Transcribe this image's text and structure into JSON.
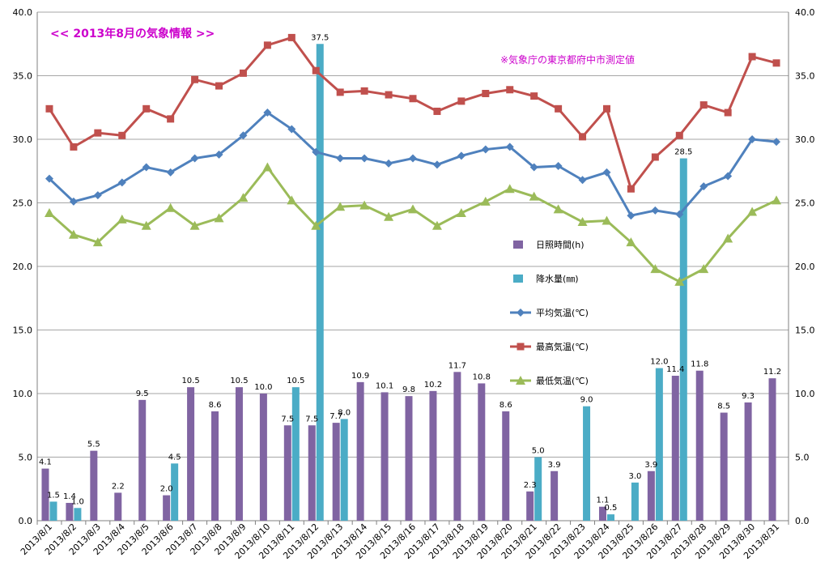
{
  "chart_data": {
    "type": "bar",
    "title": "<<  2013年8月の気象情報  >>",
    "note": "※気象庁の東京都府中市測定値",
    "ylim": [
      0,
      40
    ],
    "yticks": [
      "0.0",
      "5.0",
      "10.0",
      "15.0",
      "20.0",
      "25.0",
      "30.0",
      "35.0",
      "40.0"
    ],
    "grid": true,
    "legend_position": "center-right",
    "categories": [
      "2013/8/1",
      "2013/8/2",
      "2013/8/3",
      "2013/8/4",
      "2013/8/5",
      "2013/8/6",
      "2013/8/7",
      "2013/8/8",
      "2013/8/9",
      "2013/8/10",
      "2013/8/11",
      "2013/8/12",
      "2013/8/13",
      "2013/8/14",
      "2013/8/15",
      "2013/8/16",
      "2013/8/17",
      "2013/8/18",
      "2013/8/19",
      "2013/8/20",
      "2013/8/21",
      "2013/8/22",
      "2013/8/23",
      "2013/8/24",
      "2013/8/25",
      "2013/8/26",
      "2013/8/27",
      "2013/8/28",
      "2013/8/29",
      "2013/8/30",
      "2013/8/31"
    ],
    "series": [
      {
        "name": "日照時間(h)",
        "kind": "bar",
        "color": "#8064a2",
        "values": [
          4.1,
          1.4,
          5.5,
          2.2,
          9.5,
          2.0,
          10.5,
          8.6,
          10.5,
          10.0,
          7.5,
          7.5,
          7.7,
          10.9,
          10.1,
          9.8,
          10.2,
          11.7,
          10.8,
          8.6,
          2.3,
          3.9,
          0,
          1.1,
          0,
          3.9,
          11.4,
          11.8,
          8.5,
          9.3,
          11.2
        ],
        "labels": [
          "4.1",
          "1.4",
          "5.5",
          "2.2",
          "9.5",
          "2.0",
          "10.5",
          "8.6",
          "10.5",
          "10.0",
          "7.5",
          "7.5",
          "7.7",
          "10.9",
          "10.1",
          "9.8",
          "10.2",
          "11.7",
          "10.8",
          "8.6",
          "2.3",
          "3.9",
          "",
          "1.1",
          "",
          "3.9",
          "11.4",
          "11.8",
          "8.5",
          "9.3",
          "11.2"
        ]
      },
      {
        "name": "降水量(㎜)",
        "kind": "bar",
        "color": "#4bacc6",
        "values": [
          1.5,
          1.0,
          0,
          0,
          0,
          4.5,
          0,
          0,
          0,
          0,
          10.5,
          37.5,
          8.0,
          0,
          0,
          0,
          0,
          0,
          0,
          0,
          5.0,
          0,
          9.0,
          0.5,
          3.0,
          12.0,
          28.5,
          0,
          0,
          0,
          0
        ],
        "labels": [
          "1.5",
          "1.0",
          "",
          "",
          "",
          "4.5",
          "",
          "",
          "",
          "",
          "10.5",
          "37.5",
          "8.0",
          "",
          "",
          "",
          "",
          "",
          "",
          "",
          "5.0",
          "",
          "9.0",
          "0.5",
          "3.0",
          "12.0",
          "28.5",
          "",
          "",
          "",
          ""
        ]
      },
      {
        "name": "平均気温(℃)",
        "kind": "line",
        "marker": "diamond",
        "color": "#4f81bd",
        "values": [
          26.9,
          25.1,
          25.6,
          26.6,
          27.8,
          27.4,
          28.5,
          28.8,
          30.3,
          32.1,
          30.8,
          29.0,
          28.5,
          28.5,
          28.1,
          28.5,
          28.0,
          28.7,
          29.2,
          29.4,
          27.8,
          27.9,
          26.8,
          27.4,
          24.0,
          24.4,
          24.1,
          26.3,
          27.1,
          30.0,
          29.8
        ]
      },
      {
        "name": "最高気温(℃)",
        "kind": "line",
        "marker": "square",
        "color": "#c0504d",
        "values": [
          32.4,
          29.4,
          30.5,
          30.3,
          32.4,
          31.6,
          34.7,
          34.2,
          35.2,
          37.4,
          38.0,
          35.4,
          33.7,
          33.8,
          33.5,
          33.2,
          32.2,
          33.0,
          33.6,
          33.9,
          33.4,
          32.4,
          30.2,
          32.4,
          26.1,
          28.6,
          30.3,
          32.7,
          32.1,
          36.5,
          36.0
        ]
      },
      {
        "name": "最低気温(℃)",
        "kind": "line",
        "marker": "triangle",
        "color": "#9bbb59",
        "values": [
          24.2,
          22.5,
          21.9,
          23.7,
          23.2,
          24.6,
          23.2,
          23.8,
          25.4,
          27.8,
          25.2,
          23.2,
          24.7,
          24.8,
          23.9,
          24.5,
          23.2,
          24.2,
          25.1,
          26.1,
          25.5,
          24.5,
          23.5,
          23.6,
          21.9,
          19.8,
          18.8,
          19.8,
          22.2,
          24.3,
          25.2
        ]
      }
    ]
  }
}
